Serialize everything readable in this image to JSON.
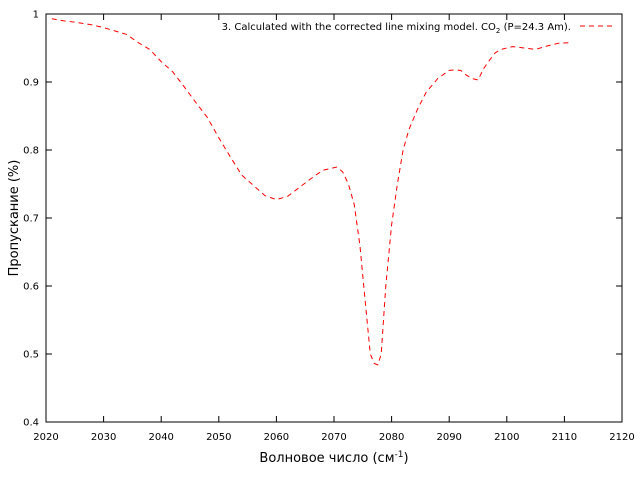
{
  "chart_data": {
    "type": "line",
    "title": "",
    "xlabel": "Волновое число (см",
    "xlabel_sup": "-1",
    "xlabel_close": ")",
    "ylabel": "Пропускание (%)",
    "xlim": [
      2020,
      2120
    ],
    "ylim": [
      0.4,
      1.0
    ],
    "xticks": [
      2020,
      2030,
      2040,
      2050,
      2060,
      2070,
      2080,
      2090,
      2100,
      2110,
      2120
    ],
    "yticks": [
      0.4,
      0.5,
      0.6,
      0.7,
      0.8,
      0.9,
      1.0
    ],
    "ytick_labels": [
      "0.4",
      "0.5",
      "0.6",
      "0.7",
      "0.8",
      "0.9",
      "1"
    ],
    "grid": false,
    "legend_position": "top-right",
    "series": [
      {
        "legend_prefix": "3. Calculated with the corrected line mixing model. CO",
        "legend_sub": "2",
        "legend_suffix": " (P=24.3 Am).",
        "color": "#ff0000",
        "dash": "dashed",
        "x": [
          2021,
          2023,
          2025,
          2028,
          2030,
          2032,
          2034,
          2036,
          2038,
          2040,
          2042,
          2044,
          2046,
          2048,
          2050,
          2052,
          2054,
          2056,
          2058,
          2060,
          2062,
          2064,
          2066,
          2068,
          2069.5,
          2070.5,
          2071.5,
          2072.5,
          2073.5,
          2074.5,
          2075.5,
          2076.3,
          2077,
          2077.6,
          2078.2,
          2079,
          2080,
          2081,
          2082,
          2083,
          2084.5,
          2086,
          2088,
          2090,
          2091,
          2092,
          2093,
          2094,
          2095,
          2096,
          2097,
          2098,
          2099,
          2101,
          2103,
          2105,
          2107,
          2109,
          2111
        ],
        "y": [
          0.993,
          0.99,
          0.988,
          0.984,
          0.98,
          0.975,
          0.97,
          0.958,
          0.948,
          0.93,
          0.915,
          0.893,
          0.87,
          0.848,
          0.818,
          0.79,
          0.763,
          0.748,
          0.733,
          0.727,
          0.732,
          0.745,
          0.758,
          0.77,
          0.773,
          0.775,
          0.768,
          0.75,
          0.72,
          0.66,
          0.57,
          0.5,
          0.486,
          0.484,
          0.5,
          0.6,
          0.69,
          0.75,
          0.8,
          0.83,
          0.86,
          0.885,
          0.905,
          0.917,
          0.918,
          0.917,
          0.91,
          0.905,
          0.903,
          0.92,
          0.932,
          0.943,
          0.948,
          0.952,
          0.95,
          0.948,
          0.953,
          0.957,
          0.958
        ]
      }
    ]
  }
}
